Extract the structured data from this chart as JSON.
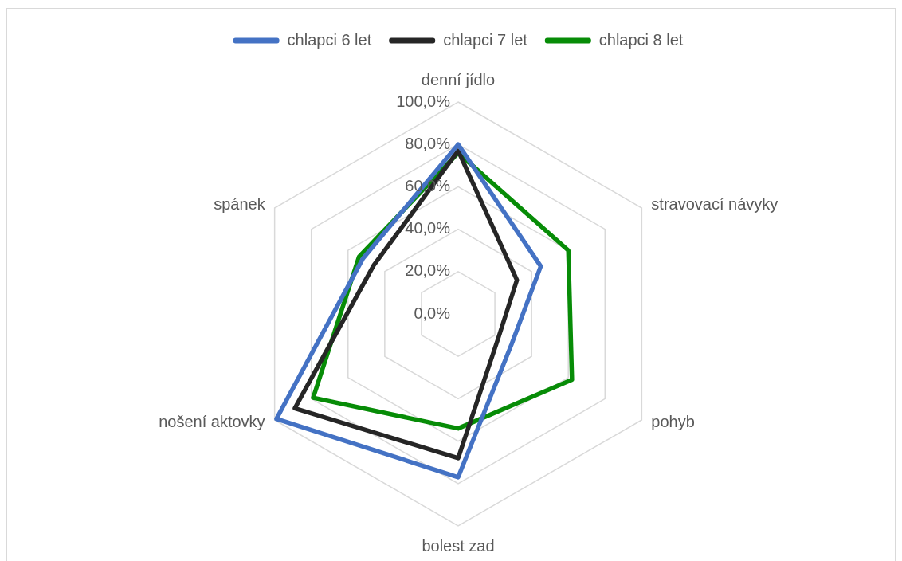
{
  "chart_data": {
    "type": "radar",
    "categories": [
      "denní jídlo",
      "stravovací návyky",
      "pohyb",
      "bolest zad",
      "nošení aktovky",
      "spánek"
    ],
    "series": [
      {
        "name": "chlapci 6 let",
        "color": "#4472c4",
        "values": [
          80,
          45,
          29,
          77,
          99,
          52
        ]
      },
      {
        "name": "chlapci 7 let",
        "color": "#262626",
        "values": [
          77,
          32,
          22,
          68,
          89,
          46
        ]
      },
      {
        "name": "chlapci 8 let",
        "color": "#078c07",
        "values": [
          76,
          60,
          62,
          54,
          79,
          54
        ]
      }
    ],
    "ylim": [
      0,
      100
    ],
    "yticks": [
      {
        "value": 0,
        "label": "0,0%"
      },
      {
        "value": 20,
        "label": "20,0%"
      },
      {
        "value": 40,
        "label": "40,0%"
      },
      {
        "value": 60,
        "label": "60,0%"
      },
      {
        "value": 80,
        "label": "80,0%"
      },
      {
        "value": 100,
        "label": "100,0%"
      }
    ],
    "grid": true,
    "legend": "top",
    "marker": "none",
    "line_style": "solid"
  }
}
